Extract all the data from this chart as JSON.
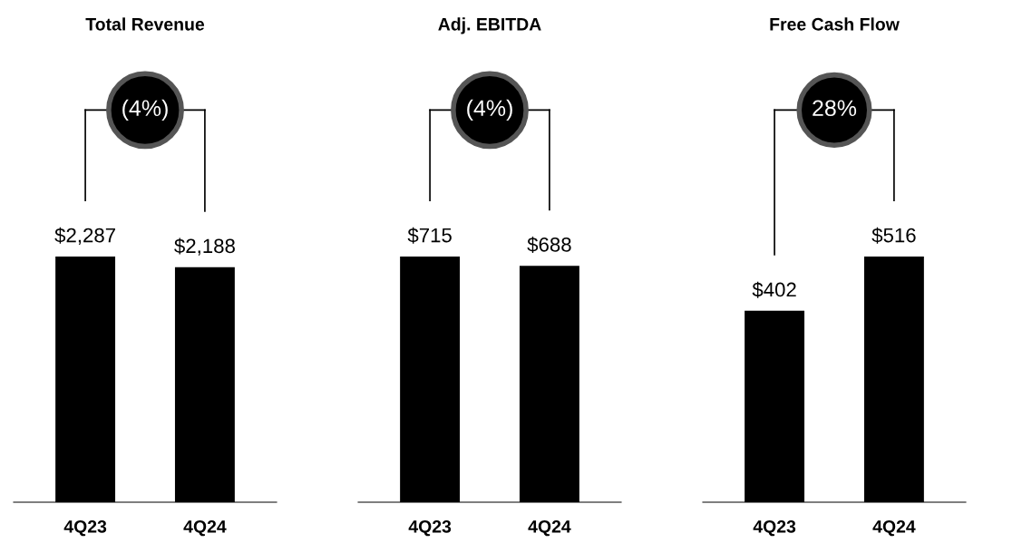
{
  "chart_data": [
    {
      "type": "bar",
      "title": "Total Revenue",
      "categories": [
        "4Q23",
        "4Q24"
      ],
      "values": [
        2287,
        2188
      ],
      "value_labels": [
        "$2,287",
        "$2,188"
      ],
      "color": "#000000",
      "annotations": [
        "(4%)"
      ],
      "tick_labels": "x",
      "grid": false,
      "legend": false
    },
    {
      "type": "bar",
      "title": "Adj. EBITDA",
      "categories": [
        "4Q23",
        "4Q24"
      ],
      "values": [
        715,
        688
      ],
      "value_labels": [
        "$715",
        "$688"
      ],
      "color": "#000000",
      "annotations": [
        "(4%)"
      ],
      "tick_labels": "x",
      "grid": false,
      "legend": false
    },
    {
      "type": "bar",
      "title": "Free Cash Flow",
      "categories": [
        "4Q23",
        "4Q24"
      ],
      "values": [
        402,
        516
      ],
      "value_labels": [
        "$402",
        "$516"
      ],
      "color": "#000000",
      "annotations": [
        "28%"
      ],
      "tick_labels": "x",
      "grid": false,
      "legend": false
    }
  ]
}
